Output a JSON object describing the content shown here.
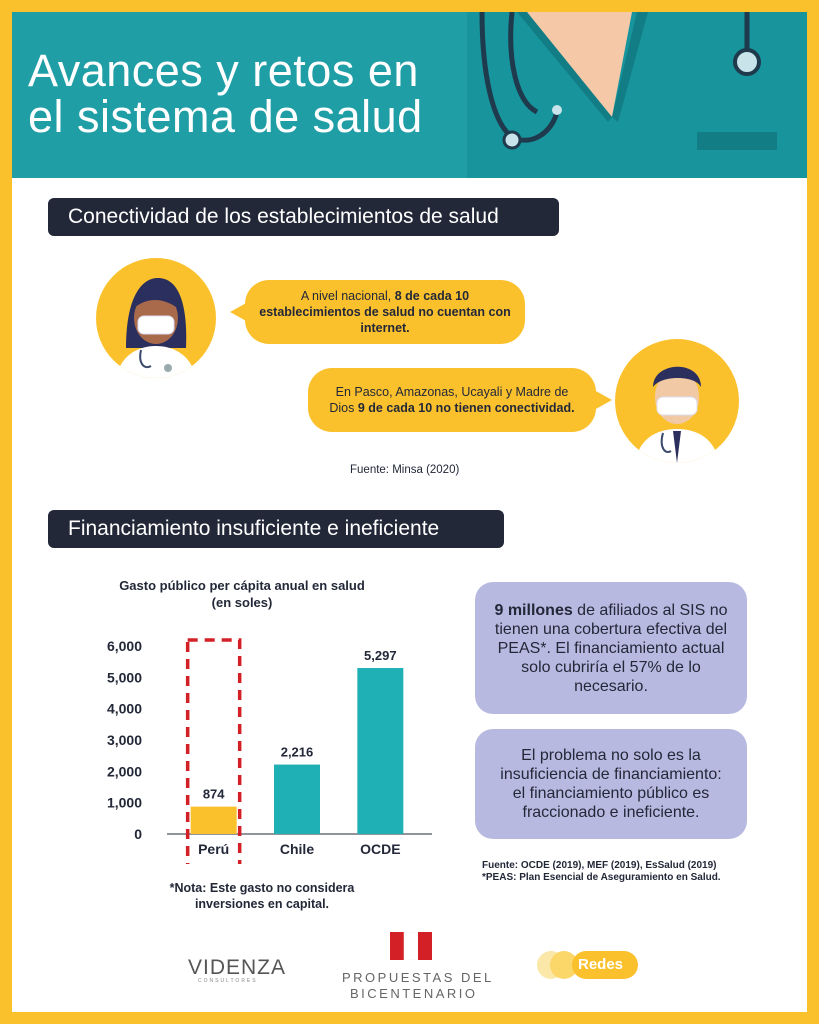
{
  "title_line1": "Avances y retos en",
  "title_line2": "el sistema de salud",
  "section1_title": "Conectividad de los establecimientos de salud",
  "bubble1": {
    "prefix": "A nivel nacional, ",
    "bold": "8 de cada 10 establecimientos de salud no cuentan con internet."
  },
  "bubble2": {
    "prefix": "En Pasco, Amazonas, Ucayali y Madre de Dios ",
    "bold": "9 de cada 10 no tienen conectividad."
  },
  "source1": "Fuente: Minsa (2020)",
  "section2_title": "Financiamiento insuficiente e ineficiente",
  "chart_data": {
    "type": "bar",
    "title": "Gasto público per cápita anual en salud (en soles)",
    "title_line1": "Gasto público per cápita anual en salud",
    "title_line2": "(en soles)",
    "categories": [
      "Perú",
      "Chile",
      "OCDE"
    ],
    "values": [
      874,
      2216,
      5297
    ],
    "value_labels": [
      "874",
      "2,216",
      "5,297"
    ],
    "yticks": [
      "0",
      "1,000",
      "2,000",
      "3,000",
      "4,000",
      "5,000",
      "6,000"
    ],
    "ylim": [
      0,
      6000
    ],
    "colors": [
      "#fbc12d",
      "#1fb0b5",
      "#1fb0b5"
    ],
    "highlight": "Perú"
  },
  "note_line1": "*Nota: Este gasto no considera",
  "note_line2": "inversiones en capital.",
  "card1": {
    "bold": "9 millones",
    "rest": " de afiliados al SIS no tienen una cobertura efectiva del PEAS*. El financiamiento actual solo cubriría el 57% de lo necesario."
  },
  "card2": "El problema no solo es la insuficiencia de financiamiento: el financiamiento público es fraccionado e ineficiente.",
  "footer_source_line1": "Fuente: OCDE (2019), MEF (2019), EsSalud (2019)",
  "footer_source_line2": "*PEAS: Plan Esencial de Aseguramiento en Salud.",
  "logos": {
    "videnza": "VIDENZA",
    "videnza_sub": "CONSULTORES",
    "propuestas_line1": "PROPUESTAS DEL",
    "propuestas_line2": "BICENTENARIO",
    "redes": "Redes"
  },
  "colors": {
    "frame": "#fbc12d",
    "teal": "#1f9ea6",
    "dark": "#232838",
    "card": "#b8b9e0"
  }
}
